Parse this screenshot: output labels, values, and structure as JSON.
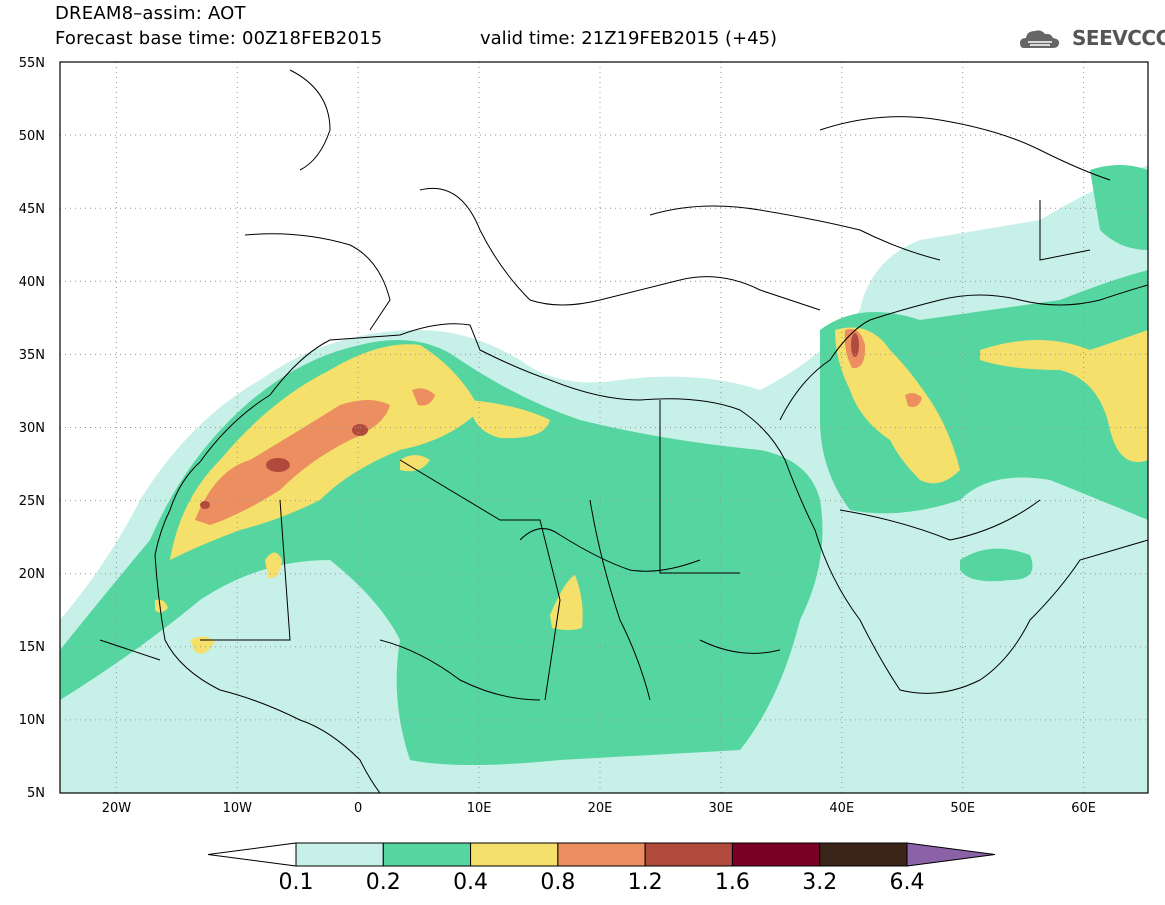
{
  "title": {
    "line1": "DREAM8–assim: AOT",
    "line2": "Forecast base time: 00Z18FEB2015",
    "valid": "valid time: 21Z19FEB2015 (+45)"
  },
  "logo": {
    "text": "SEEVCCC",
    "icon": "cloud-icon"
  },
  "axes": {
    "lat_labels": [
      "55N",
      "50N",
      "45N",
      "40N",
      "35N",
      "30N",
      "25N",
      "20N",
      "15N",
      "10N",
      "5N"
    ],
    "lon_labels": [
      "20W",
      "10W",
      "0",
      "10E",
      "20E",
      "30E",
      "40E",
      "50E",
      "60E"
    ],
    "lat_range": [
      5,
      55
    ],
    "lon_range": [
      -25,
      65
    ],
    "grid": "dotted"
  },
  "colorbar": {
    "labels": [
      "0.1",
      "0.2",
      "0.4",
      "0.8",
      "1.2",
      "1.6",
      "3.2",
      "6.4"
    ],
    "colors": [
      "#ffffff",
      "#c6f0e8",
      "#55d6a0",
      "#f4e06a",
      "#ec8e60",
      "#b04a3c",
      "#7a0026",
      "#3b2418",
      "#8b62a8"
    ]
  },
  "legend_colors": {
    "c01": "#c6f0e8",
    "c02": "#55d6a0",
    "c04": "#f4e06a",
    "c08": "#ec8e60",
    "c12": "#b04a3c"
  }
}
